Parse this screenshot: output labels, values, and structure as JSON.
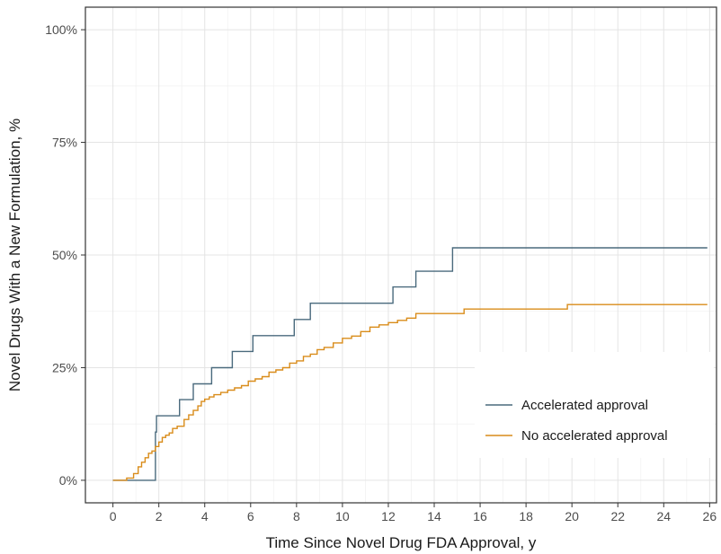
{
  "chart_data": {
    "type": "line",
    "subtype": "step",
    "xlabel": "Time Since Novel Drug FDA Approval, y",
    "ylabel": "Novel Drugs With a New Formulation, %",
    "xlim": [
      -1.2,
      26.3
    ],
    "ylim": [
      -5,
      105
    ],
    "x_ticks": [
      0,
      2,
      4,
      6,
      8,
      10,
      12,
      14,
      16,
      18,
      20,
      22,
      24,
      26
    ],
    "y_ticks": [
      0,
      25,
      50,
      75,
      100
    ],
    "y_tick_labels": [
      "0%",
      "25%",
      "50%",
      "75%",
      "100%"
    ],
    "grid": true,
    "legend_position": "bottom-right",
    "series": [
      {
        "name": "Accelerated approval",
        "color": "#4a6a7d",
        "x": [
          0,
          1.8,
          1.85,
          1.9,
          2.9,
          3.5,
          4.3,
          5.2,
          6.1,
          7.9,
          8.6,
          12.2,
          13.2,
          14.8,
          25.9
        ],
        "y": [
          0,
          0,
          10.7,
          14.3,
          17.9,
          21.4,
          25.0,
          28.6,
          32.1,
          35.7,
          39.3,
          42.9,
          46.4,
          51.6,
          51.6
        ]
      },
      {
        "name": "No accelerated approval",
        "color": "#d98c1a",
        "x": [
          0,
          0.6,
          0.9,
          1.1,
          1.25,
          1.4,
          1.55,
          1.7,
          1.85,
          2.0,
          2.15,
          2.3,
          2.45,
          2.6,
          2.8,
          3.1,
          3.3,
          3.5,
          3.7,
          3.85,
          4.0,
          4.2,
          4.4,
          4.7,
          5.0,
          5.3,
          5.6,
          5.9,
          6.2,
          6.5,
          6.8,
          7.1,
          7.4,
          7.7,
          8.0,
          8.3,
          8.6,
          8.9,
          9.2,
          9.6,
          10.0,
          10.4,
          10.8,
          11.2,
          11.6,
          12.0,
          12.4,
          12.8,
          13.2,
          15.3,
          19.8,
          25.9
        ],
        "y": [
          0,
          0.5,
          1.5,
          3.0,
          4.0,
          5.0,
          6.0,
          6.5,
          7.5,
          8.5,
          9.5,
          10.0,
          10.5,
          11.5,
          12.0,
          13.5,
          14.5,
          15.5,
          16.5,
          17.5,
          18.0,
          18.5,
          19.0,
          19.5,
          20.0,
          20.5,
          21.0,
          22.0,
          22.5,
          23.0,
          24.0,
          24.5,
          25.0,
          26.0,
          26.5,
          27.5,
          28.0,
          29.0,
          29.5,
          30.5,
          31.5,
          32.0,
          33.0,
          34.0,
          34.5,
          35.0,
          35.5,
          36.0,
          37.0,
          38.0,
          39.0,
          39.0
        ]
      }
    ]
  }
}
